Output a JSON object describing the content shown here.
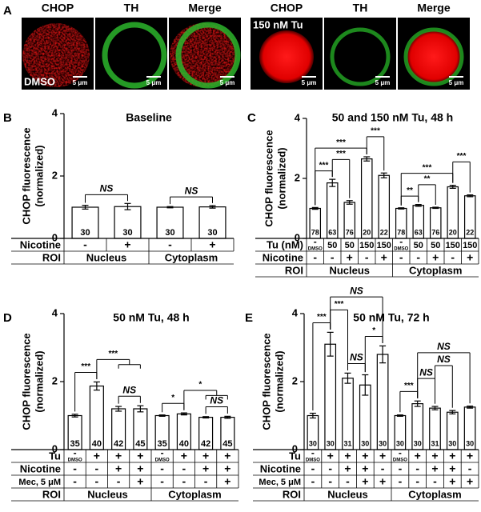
{
  "panel_a": {
    "label": "A",
    "scale_bar": "5 μm",
    "groups": [
      {
        "channels": [
          "CHOP",
          "TH",
          "Merge"
        ],
        "condition": "DMSO"
      },
      {
        "channels": [
          "CHOP",
          "TH",
          "Merge"
        ],
        "condition": "150 nM Tu"
      }
    ]
  },
  "chart_data": [
    {
      "type": "bar",
      "panel": "B",
      "title": "Baseline",
      "y_label": [
        "CHOP fluorescence",
        "(normalized)"
      ],
      "ylim": [
        0,
        4
      ],
      "yticks": [
        0,
        2,
        4
      ],
      "values": [
        1.0,
        1.02,
        1.0,
        1.01
      ],
      "errors": [
        0.06,
        0.1,
        0.02,
        0.04
      ],
      "n": [
        30,
        30,
        30,
        30
      ],
      "rows": [
        {
          "label": "Nicotine",
          "cells": [
            "-",
            "+",
            "-",
            "+"
          ]
        }
      ],
      "roi": {
        "label": "ROI",
        "groups": [
          "Nucleus",
          "Cytoplasm"
        ]
      },
      "brackets": [
        {
          "from": [
            0
          ],
          "to": [
            1
          ],
          "label": "NS"
        },
        {
          "from": [
            2
          ],
          "to": [
            3
          ],
          "label": "NS"
        }
      ]
    },
    {
      "type": "bar",
      "panel": "C",
      "title": "50 and 150 nM Tu, 48 h",
      "y_label": [
        "CHOP fluorescence",
        "(normalized)"
      ],
      "ylim": [
        0,
        4
      ],
      "yticks": [
        0,
        2,
        4
      ],
      "values": [
        1.0,
        1.85,
        1.2,
        2.65,
        2.1,
        1.0,
        1.1,
        1.02,
        1.72,
        1.42
      ],
      "errors": [
        0.03,
        0.12,
        0.06,
        0.07,
        0.08,
        0.02,
        0.03,
        0.02,
        0.05,
        0.03
      ],
      "n": [
        78,
        63,
        76,
        20,
        22,
        78,
        63,
        76,
        20,
        22
      ],
      "rows": [
        {
          "label": "Tu (nM)",
          "cells": [
            [
              "-",
              "DMSO"
            ],
            "50",
            "50",
            "150",
            "150",
            [
              "-",
              "DMSO"
            ],
            "50",
            "50",
            "150",
            "150"
          ]
        },
        {
          "label": "Nicotine",
          "cells": [
            "-",
            "-",
            "+",
            "-",
            "+",
            "-",
            "-",
            "+",
            "-",
            "+"
          ]
        }
      ],
      "roi": {
        "label": "ROI",
        "groups": [
          "Nucleus",
          "Cytoplasm"
        ]
      },
      "brackets": [
        {
          "from": [
            0
          ],
          "to": [
            1
          ],
          "label": "***"
        },
        {
          "from": [
            1
          ],
          "to": [
            2
          ],
          "label": "***"
        },
        {
          "from": [
            0
          ],
          "to": [
            3
          ],
          "label": "***"
        },
        {
          "from": [
            3
          ],
          "to": [
            4
          ],
          "label": "***"
        },
        {
          "from": [
            5
          ],
          "to": [
            6
          ],
          "label": "**"
        },
        {
          "from": [
            6
          ],
          "to": [
            7
          ],
          "label": "**"
        },
        {
          "from": [
            5
          ],
          "to": [
            8
          ],
          "label": "***"
        },
        {
          "from": [
            8
          ],
          "to": [
            9
          ],
          "label": "***"
        }
      ]
    },
    {
      "type": "bar",
      "panel": "D",
      "title": "50 nM Tu, 48 h",
      "y_label": [
        "CHOP fluorescence",
        "(normalized)"
      ],
      "ylim": [
        0,
        4
      ],
      "yticks": [
        0,
        2,
        4
      ],
      "values": [
        1.0,
        1.87,
        1.2,
        1.2,
        1.0,
        1.05,
        0.95,
        0.95
      ],
      "errors": [
        0.04,
        0.12,
        0.07,
        0.09,
        0.02,
        0.03,
        0.02,
        0.03
      ],
      "n": [
        35,
        40,
        42,
        45,
        35,
        40,
        42,
        45
      ],
      "rows": [
        {
          "label": "Tu",
          "cells": [
            [
              "-",
              "DMSO"
            ],
            "+",
            "+",
            "+",
            [
              "-",
              "DMSO"
            ],
            "+",
            "+",
            "+"
          ]
        },
        {
          "label": "Nicotine",
          "cells": [
            "-",
            "-",
            "+",
            "+",
            "-",
            "-",
            "+",
            "+"
          ]
        },
        {
          "label": "Mec, 5 μM",
          "cells": [
            "-",
            "-",
            "-",
            "+",
            "-",
            "-",
            "-",
            "+"
          ]
        }
      ],
      "roi": {
        "label": "ROI",
        "groups": [
          "Nucleus",
          "Cytoplasm"
        ]
      },
      "brackets": [
        {
          "from": [
            0
          ],
          "to": [
            1
          ],
          "label": "***"
        },
        {
          "from": [
            2
          ],
          "to": [
            3
          ],
          "label": "NS"
        },
        {
          "from": [
            1
          ],
          "to": [
            2,
            3
          ],
          "label": "***"
        },
        {
          "from": [
            4
          ],
          "to": [
            5
          ],
          "label": "*"
        },
        {
          "from": [
            6
          ],
          "to": [
            7
          ],
          "label": "NS"
        },
        {
          "from": [
            5
          ],
          "to": [
            6,
            7
          ],
          "label": "*"
        }
      ]
    },
    {
      "type": "bar",
      "panel": "E",
      "title": "50 nM Tu, 72 h",
      "y_label": [
        "CHOP fluorescence",
        "(normalized)"
      ],
      "ylim": [
        0,
        4
      ],
      "yticks": [
        0,
        2,
        4
      ],
      "values": [
        1.0,
        3.1,
        2.1,
        1.9,
        2.8,
        1.0,
        1.35,
        1.22,
        1.1,
        1.25
      ],
      "errors": [
        0.07,
        0.35,
        0.15,
        0.3,
        0.25,
        0.02,
        0.08,
        0.05,
        0.05,
        0.03
      ],
      "n": [
        30,
        30,
        31,
        30,
        30,
        30,
        30,
        31,
        30,
        30
      ],
      "rows": [
        {
          "label": "Tu",
          "cells": [
            [
              "-",
              "DMSO"
            ],
            "+",
            "+",
            "+",
            "+",
            [
              "-",
              "DMSO"
            ],
            "+",
            "+",
            "+",
            "+"
          ]
        },
        {
          "label": "Nicotine",
          "cells": [
            "-",
            "-",
            "+",
            "+",
            "-",
            "-",
            "-",
            "+",
            "+",
            "-"
          ]
        },
        {
          "label": "Mec, 5 μM",
          "cells": [
            "-",
            "-",
            "-",
            "+",
            "+",
            "-",
            "-",
            "-",
            "+",
            "+"
          ]
        }
      ],
      "roi": {
        "label": "ROI",
        "groups": [
          "Nucleus",
          "Cytoplasm"
        ]
      },
      "brackets": [
        {
          "from": [
            0
          ],
          "to": [
            1
          ],
          "label": "***"
        },
        {
          "from": [
            2
          ],
          "to": [
            3
          ],
          "label": "NS"
        },
        {
          "from": [
            3
          ],
          "to": [
            4
          ],
          "label": "*"
        },
        {
          "from": [
            1
          ],
          "to": [
            2
          ],
          "label": "***"
        },
        {
          "from": [
            1
          ],
          "to": [
            4
          ],
          "label": "NS"
        },
        {
          "from": [
            5
          ],
          "to": [
            6
          ],
          "label": "***"
        },
        {
          "from": [
            6
          ],
          "to": [
            7
          ],
          "label": "NS"
        },
        {
          "from": [
            7
          ],
          "to": [
            8
          ],
          "label": "NS"
        },
        {
          "from": [
            6
          ],
          "to": [
            9
          ],
          "label": "NS"
        }
      ]
    }
  ]
}
